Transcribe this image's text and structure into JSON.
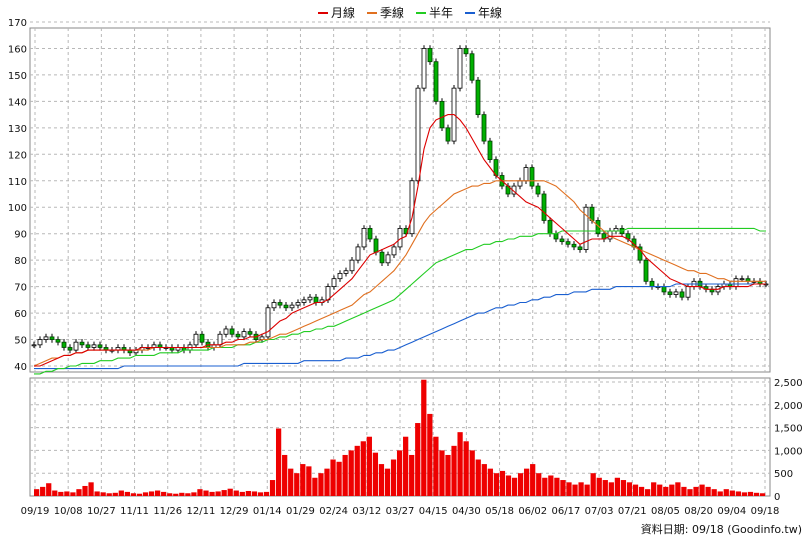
{
  "chart_data": {
    "type": "candlestick+bar",
    "legend": [
      {
        "name": "月線",
        "color": "#dd0000"
      },
      {
        "name": "季線",
        "color": "#e07020"
      },
      {
        "name": "半年",
        "color": "#22cc22"
      },
      {
        "name": "年線",
        "color": "#1a5fd0"
      }
    ],
    "x_labels": [
      "09/19",
      "10/08",
      "10/27",
      "11/11",
      "11/26",
      "12/11",
      "12/29",
      "01/14",
      "01/29",
      "02/24",
      "03/12",
      "03/27",
      "04/15",
      "04/30",
      "05/18",
      "06/02",
      "06/17",
      "07/03",
      "07/21",
      "08/05",
      "08/20",
      "09/04",
      "09/18"
    ],
    "price_axis": {
      "min": 40,
      "max": 170,
      "step": 10
    },
    "volume_axis": {
      "min": 0,
      "max": 2500,
      "ticks": [
        0,
        500,
        1000,
        1500,
        2000,
        2500
      ],
      "tick_labels": [
        "0",
        "500",
        "1,000",
        "1,500",
        "2,000",
        "2,500"
      ]
    },
    "price_series": [
      48,
      50,
      51,
      50,
      49,
      47,
      46,
      49,
      48,
      47,
      48,
      47,
      46,
      46,
      47,
      46,
      45,
      46,
      47,
      47,
      48,
      47,
      47,
      46,
      47,
      46,
      48,
      52,
      49,
      47,
      48,
      52,
      54,
      52,
      51,
      53,
      52,
      50,
      51,
      62,
      64,
      63,
      62,
      63,
      64,
      65,
      66,
      64,
      65,
      70,
      73,
      75,
      76,
      80,
      85,
      92,
      88,
      83,
      79,
      82,
      85,
      92,
      90,
      110,
      145,
      160,
      155,
      140,
      130,
      125,
      145,
      160,
      158,
      148,
      135,
      125,
      118,
      112,
      108,
      105,
      108,
      110,
      115,
      108,
      105,
      95,
      90,
      88,
      87,
      86,
      85,
      84,
      100,
      95,
      90,
      88,
      91,
      92,
      90,
      88,
      85,
      80,
      72,
      70,
      70,
      68,
      67,
      68,
      66,
      70,
      72,
      70,
      69,
      68,
      70,
      71,
      70,
      73,
      73,
      72,
      72,
      71,
      71
    ],
    "ma_month": [
      40,
      40,
      41,
      42,
      43,
      44,
      44,
      45,
      45,
      46,
      46,
      46,
      46,
      46,
      46,
      46,
      46,
      46,
      47,
      47,
      47,
      47,
      47,
      47,
      47,
      47,
      47,
      47,
      47,
      48,
      48,
      48,
      49,
      49,
      50,
      50,
      51,
      51,
      52,
      53,
      55,
      57,
      58,
      60,
      61,
      62,
      63,
      64,
      64,
      65,
      67,
      69,
      71,
      73,
      76,
      79,
      82,
      83,
      84,
      85,
      86,
      88,
      89,
      96,
      108,
      122,
      130,
      133,
      134,
      135,
      135,
      133,
      130,
      126,
      122,
      118,
      115,
      112,
      110,
      108,
      106,
      104,
      102,
      101,
      100,
      98,
      96,
      94,
      92,
      90,
      88,
      86,
      87,
      88,
      88,
      88,
      89,
      89,
      89,
      88,
      86,
      84,
      81,
      79,
      77,
      75,
      73,
      72,
      71,
      70,
      70,
      70,
      69,
      69,
      69,
      70,
      70,
      70,
      70,
      70,
      71,
      71,
      71
    ],
    "ma_season": [
      40,
      41,
      42,
      43,
      43,
      44,
      44,
      45,
      45,
      46,
      46,
      46,
      46,
      46,
      46,
      46,
      46,
      46,
      46,
      46,
      47,
      47,
      47,
      47,
      47,
      47,
      47,
      47,
      47,
      47,
      47,
      47,
      48,
      48,
      48,
      48,
      49,
      49,
      50,
      50,
      51,
      52,
      52,
      53,
      54,
      55,
      56,
      57,
      58,
      59,
      60,
      61,
      62,
      63,
      65,
      67,
      68,
      70,
      72,
      74,
      76,
      79,
      82,
      86,
      90,
      94,
      97,
      99,
      101,
      103,
      105,
      106,
      107,
      108,
      108,
      109,
      109,
      110,
      110,
      110,
      110,
      110,
      110,
      110,
      110,
      110,
      109,
      108,
      106,
      104,
      102,
      99,
      97,
      95,
      93,
      91,
      89,
      88,
      87,
      86,
      85,
      84,
      83,
      82,
      81,
      80,
      79,
      78,
      77,
      76,
      76,
      75,
      75,
      74,
      73,
      73,
      72,
      72,
      72,
      72,
      72,
      72,
      72
    ],
    "ma_half": [
      37,
      37,
      38,
      38,
      39,
      39,
      40,
      40,
      41,
      41,
      41,
      42,
      42,
      42,
      43,
      43,
      43,
      44,
      44,
      44,
      44,
      45,
      45,
      45,
      45,
      46,
      46,
      46,
      46,
      46,
      47,
      47,
      47,
      47,
      48,
      48,
      48,
      49,
      49,
      50,
      50,
      51,
      51,
      52,
      52,
      53,
      53,
      54,
      54,
      55,
      55,
      56,
      57,
      58,
      59,
      60,
      61,
      62,
      63,
      64,
      65,
      67,
      69,
      71,
      73,
      75,
      77,
      79,
      80,
      81,
      82,
      83,
      84,
      84,
      85,
      86,
      86,
      87,
      87,
      88,
      88,
      89,
      89,
      89,
      90,
      90,
      90,
      90,
      91,
      91,
      91,
      91,
      91,
      91,
      91,
      91,
      91,
      91,
      91,
      92,
      92,
      92,
      92,
      92,
      92,
      92,
      92,
      92,
      92,
      92,
      92,
      92,
      92,
      92,
      92,
      92,
      92,
      92,
      92,
      92,
      92,
      91,
      91
    ],
    "ma_year": [
      39,
      39,
      39,
      39,
      39,
      39,
      39,
      39,
      39,
      39,
      39,
      39,
      39,
      39,
      39,
      40,
      40,
      40,
      40,
      40,
      40,
      40,
      40,
      40,
      40,
      40,
      40,
      40,
      40,
      40,
      40,
      40,
      40,
      40,
      40,
      41,
      41,
      41,
      41,
      41,
      41,
      41,
      41,
      41,
      41,
      42,
      42,
      42,
      42,
      42,
      42,
      42,
      43,
      43,
      43,
      44,
      44,
      45,
      45,
      46,
      46,
      47,
      48,
      49,
      50,
      51,
      52,
      53,
      54,
      55,
      56,
      57,
      58,
      59,
      60,
      60,
      61,
      62,
      62,
      63,
      63,
      64,
      64,
      65,
      65,
      66,
      66,
      67,
      67,
      67,
      68,
      68,
      68,
      69,
      69,
      69,
      69,
      70,
      70,
      70,
      70,
      70,
      70,
      70,
      70,
      70,
      70,
      71,
      71,
      71,
      71,
      71,
      71,
      71,
      71,
      71,
      71,
      71,
      71,
      71,
      71,
      71,
      71
    ],
    "volume": [
      150,
      200,
      280,
      120,
      90,
      100,
      80,
      150,
      220,
      300,
      100,
      80,
      60,
      70,
      120,
      90,
      60,
      50,
      80,
      100,
      120,
      90,
      60,
      50,
      70,
      60,
      80,
      150,
      120,
      90,
      100,
      130,
      160,
      120,
      90,
      110,
      100,
      80,
      90,
      350,
      1480,
      900,
      600,
      500,
      700,
      650,
      400,
      500,
      600,
      800,
      750,
      900,
      1000,
      1100,
      1200,
      1300,
      950,
      700,
      600,
      800,
      1000,
      1300,
      900,
      1600,
      2550,
      1800,
      1300,
      1000,
      900,
      1100,
      1400,
      1200,
      1000,
      800,
      700,
      600,
      500,
      550,
      450,
      400,
      500,
      600,
      700,
      500,
      400,
      450,
      400,
      350,
      300,
      250,
      300,
      250,
      500,
      400,
      350,
      300,
      400,
      350,
      300,
      250,
      200,
      150,
      300,
      250,
      200,
      250,
      300,
      200,
      150,
      200,
      250,
      200,
      150,
      100,
      150,
      120,
      100,
      80,
      90,
      70,
      60
    ],
    "footer_text": "資料日期: 09/18  (Goodinfo.tw)"
  }
}
